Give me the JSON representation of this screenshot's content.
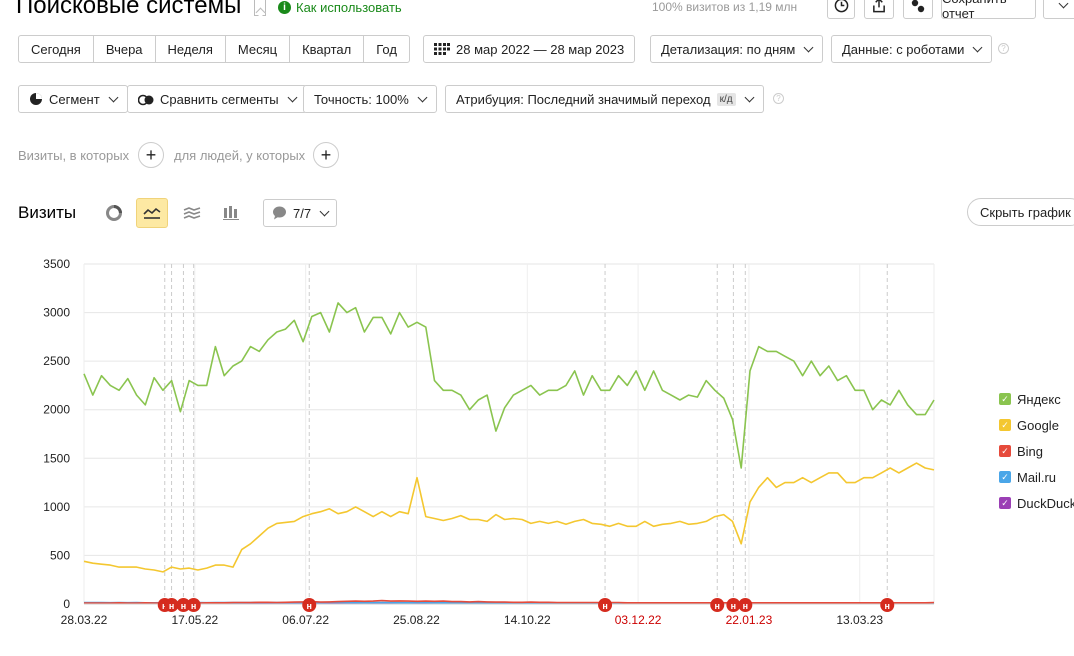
{
  "header": {
    "title": "Поисковые системы",
    "how_to_use": "Как использовать",
    "visits_share": "100% визитов из 1,19 млн",
    "save_report": "Сохранить отчет"
  },
  "periods": [
    "Сегодня",
    "Вчера",
    "Неделя",
    "Месяц",
    "Квартал",
    "Год"
  ],
  "toolbar": {
    "date_range": "28 мар 2022 — 28 мар 2023",
    "detail": "Детализация: по дням",
    "data": "Данные: с роботами",
    "segment": "Сегмент",
    "compare": "Сравнить сегменты",
    "accuracy": "Точность: 100%",
    "attribution": "Атрибуция: Последний значимый переход",
    "attribution_badge": "к/д"
  },
  "filters": {
    "visits_label": "Визиты, в которых",
    "people_label": "для людей, у которых"
  },
  "chart_controls": {
    "title": "Визиты",
    "comments_count": "7/7",
    "hide_graph": "Скрыть график"
  },
  "chart_data": {
    "type": "line",
    "x_ticks": [
      "28.03.22",
      "17.05.22",
      "06.07.22",
      "25.08.22",
      "14.10.22",
      "03.12.22",
      "22.01.23",
      "13.03.23"
    ],
    "x_tick_colors": [
      "#222222",
      "#222222",
      "#222222",
      "#222222",
      "#222222",
      "#cc0000",
      "#cc0000",
      "#222222"
    ],
    "ylim": [
      0,
      3500
    ],
    "y_ticks": [
      "0",
      "500",
      "1000",
      "1500",
      "2000",
      "2500",
      "3000",
      "3500"
    ],
    "grid": true,
    "legend_position": "right",
    "series": [
      {
        "name": "Яндекс",
        "color": "#8ac44f",
        "values": [
          2370,
          2150,
          2350,
          2250,
          2200,
          2320,
          2150,
          2050,
          2330,
          2200,
          2300,
          1980,
          2300,
          2250,
          2250,
          2650,
          2350,
          2450,
          2500,
          2650,
          2600,
          2720,
          2800,
          2830,
          2920,
          2700,
          2960,
          3000,
          2800,
          3100,
          3000,
          3050,
          2800,
          2950,
          2950,
          2780,
          3000,
          2850,
          2900,
          2850,
          2300,
          2200,
          2200,
          2150,
          2000,
          2100,
          2150,
          1780,
          2020,
          2150,
          2200,
          2250,
          2150,
          2200,
          2200,
          2250,
          2400,
          2150,
          2350,
          2200,
          2200,
          2350,
          2250,
          2400,
          2200,
          2400,
          2200,
          2150,
          2100,
          2150,
          2130,
          2300,
          2200,
          2120,
          1900,
          1400,
          2400,
          2650,
          2600,
          2600,
          2550,
          2500,
          2350,
          2500,
          2350,
          2450,
          2300,
          2350,
          2200,
          2200,
          2000,
          2100,
          2050,
          2200,
          2050,
          1950,
          1950,
          2100
        ]
      },
      {
        "name": "Google",
        "color": "#f4c730",
        "values": [
          440,
          420,
          410,
          400,
          380,
          380,
          380,
          360,
          350,
          330,
          380,
          360,
          370,
          350,
          370,
          400,
          400,
          380,
          560,
          620,
          700,
          780,
          830,
          840,
          850,
          900,
          930,
          950,
          980,
          930,
          950,
          1000,
          950,
          900,
          950,
          900,
          950,
          930,
          1300,
          900,
          880,
          860,
          880,
          910,
          870,
          870,
          850,
          920,
          870,
          880,
          870,
          830,
          850,
          830,
          850,
          820,
          850,
          870,
          830,
          820,
          800,
          830,
          800,
          800,
          850,
          800,
          820,
          830,
          850,
          820,
          830,
          850,
          900,
          920,
          850,
          620,
          1050,
          1200,
          1300,
          1200,
          1250,
          1250,
          1300,
          1250,
          1300,
          1350,
          1350,
          1250,
          1250,
          1300,
          1300,
          1350,
          1400,
          1350,
          1400,
          1450,
          1400,
          1380
        ]
      },
      {
        "name": "Bing",
        "color": "#e64a3b",
        "values": [
          10,
          10,
          10,
          10,
          12,
          10,
          10,
          12,
          10,
          10,
          10,
          12,
          10,
          10,
          12,
          12,
          12,
          15,
          15,
          15,
          18,
          18,
          15,
          18,
          20,
          22,
          25,
          20,
          22,
          25,
          28,
          30,
          28,
          30,
          35,
          30,
          32,
          30,
          28,
          30,
          28,
          30,
          25,
          25,
          22,
          25,
          22,
          20,
          20,
          18,
          18,
          20,
          18,
          18,
          15,
          15,
          15,
          15,
          15,
          15,
          15,
          15,
          12,
          12,
          12,
          12,
          12,
          12,
          12,
          12,
          12,
          12,
          12,
          12,
          12,
          12,
          12,
          12,
          12,
          12,
          12,
          12,
          12,
          12,
          12,
          12,
          12,
          12,
          12,
          12,
          12,
          12,
          12,
          12,
          12,
          12,
          12,
          15
        ]
      },
      {
        "name": "Mail.ru",
        "color": "#4aa6e8",
        "values": [
          15,
          14,
          14,
          13,
          14,
          13,
          14,
          12,
          12,
          13,
          13,
          14,
          13,
          14,
          13,
          15,
          14,
          15,
          14,
          15,
          16,
          15,
          14,
          15,
          14,
          14,
          15,
          14,
          15,
          15,
          14,
          14,
          13,
          14,
          14,
          14,
          13,
          13,
          14,
          14,
          13,
          13,
          12,
          13,
          12,
          13,
          12,
          13,
          12,
          12,
          13,
          12,
          12,
          13,
          12,
          12,
          11,
          12,
          11,
          12,
          11,
          12,
          11,
          11,
          12,
          11,
          11,
          12,
          11,
          11,
          11,
          12,
          11,
          11,
          11,
          11,
          11,
          10,
          11,
          10,
          11,
          10,
          10,
          10,
          10,
          10,
          10,
          10,
          10,
          10,
          10,
          10,
          10,
          10,
          10,
          10,
          10,
          10
        ]
      },
      {
        "name": "DuckDuck",
        "color": "#9b3fb5",
        "values": [
          4,
          4,
          4,
          4,
          4,
          4,
          4,
          4,
          4,
          4,
          4,
          4,
          4,
          4,
          4,
          4,
          4,
          4,
          4,
          4,
          4,
          4,
          4,
          4,
          4,
          4,
          4,
          4,
          4,
          4,
          4,
          4,
          4,
          4,
          4,
          4,
          4,
          4,
          4,
          4,
          4,
          4,
          4,
          4,
          4,
          4,
          4,
          4,
          4,
          4,
          4,
          4,
          4,
          4,
          4,
          4,
          4,
          4,
          4,
          4,
          4,
          4,
          4,
          4,
          4,
          4,
          4,
          4,
          4,
          4,
          4,
          4,
          4,
          4,
          4,
          4,
          4,
          4,
          4,
          4,
          4,
          4,
          4,
          4,
          4,
          4,
          4,
          4,
          4,
          4,
          4,
          4,
          4,
          4,
          4,
          4,
          4,
          4
        ]
      }
    ],
    "annotations": {
      "label": "н",
      "x_fractions": [
        0.095,
        0.103,
        0.117,
        0.129,
        0.265,
        0.613,
        0.745,
        0.764,
        0.778,
        0.945
      ]
    }
  }
}
